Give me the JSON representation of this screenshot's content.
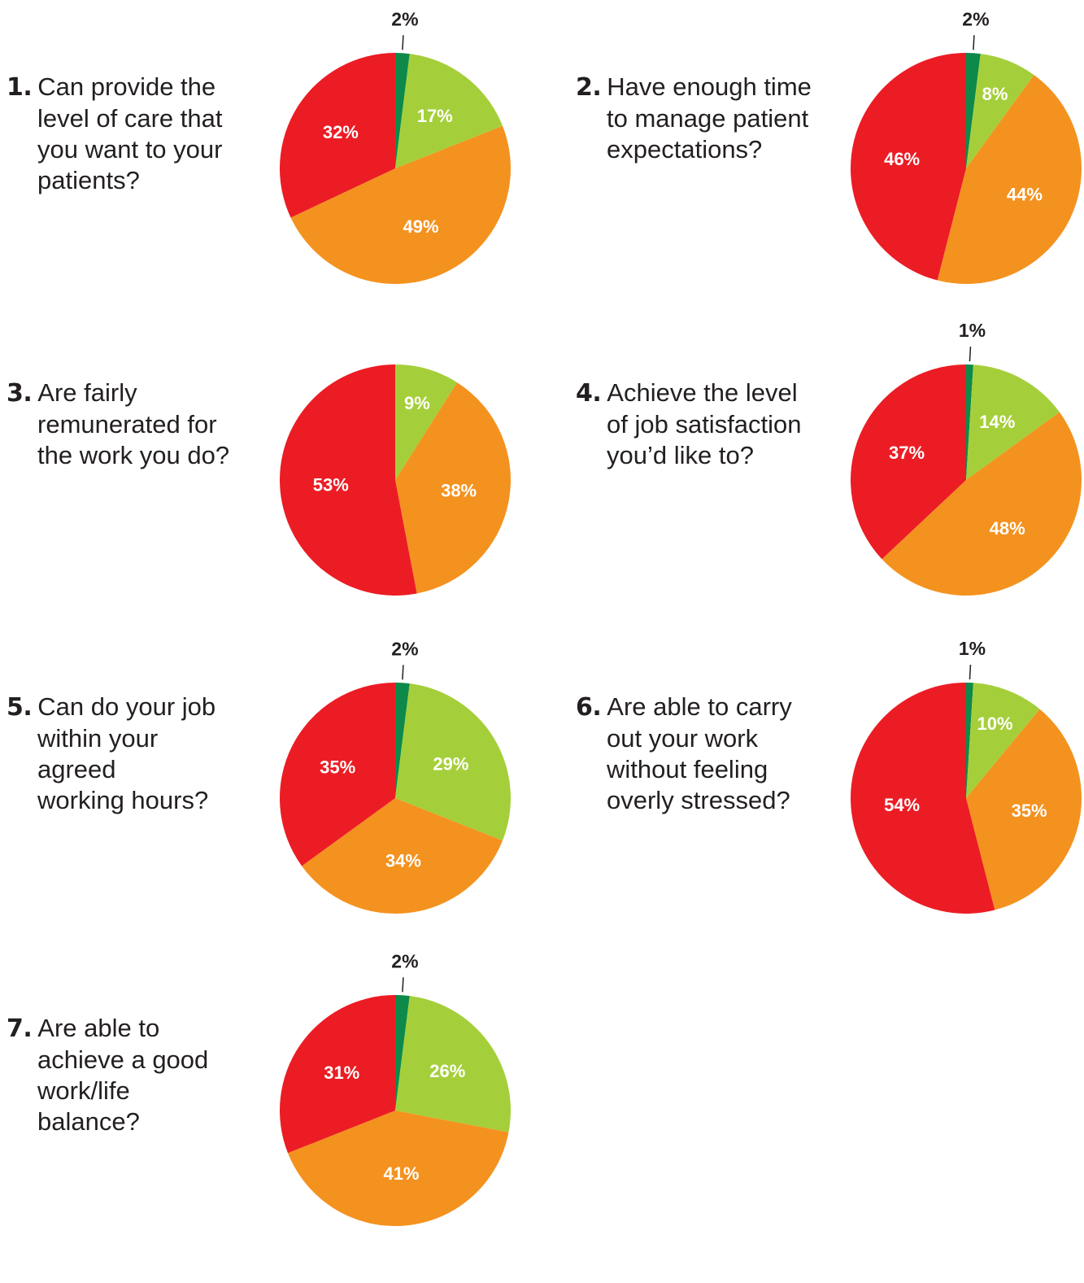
{
  "colors": {
    "very_much": "#0d8a4a",
    "mostly": "#a5cf3a",
    "sometimes": "#f4921f",
    "not_really": "#ec1c24"
  },
  "chart_data": [
    {
      "type": "pie",
      "number": "1.",
      "question": "Can provide the level of care that you want to your patients?",
      "question_lines": [
        "Can provide the",
        "level of care that",
        "you want to your",
        "patients?"
      ],
      "values": [
        2,
        17,
        49,
        32
      ],
      "labels": [
        "2%",
        "17%",
        "49%",
        "32%"
      ],
      "colors": [
        "#0d8a4a",
        "#a5cf3a",
        "#f4921f",
        "#ec1c24"
      ]
    },
    {
      "type": "pie",
      "number": "2.",
      "question": "Have enough time to manage patient expectations?",
      "question_lines": [
        "Have enough time",
        "to manage patient",
        "expectations?"
      ],
      "values": [
        2,
        8,
        44,
        46
      ],
      "labels": [
        "2%",
        "8%",
        "44%",
        "46%"
      ],
      "colors": [
        "#0d8a4a",
        "#a5cf3a",
        "#f4921f",
        "#ec1c24"
      ]
    },
    {
      "type": "pie",
      "number": "3.",
      "question": "Are fairly remunerated for the work you do?",
      "question_lines": [
        "Are fairly",
        "remunerated for",
        "the work you do?"
      ],
      "values": [
        9,
        38,
        53
      ],
      "labels": [
        "9%",
        "38%",
        "53%"
      ],
      "colors": [
        "#a5cf3a",
        "#f4921f",
        "#ec1c24"
      ]
    },
    {
      "type": "pie",
      "number": "4.",
      "question": "Achieve the level of job satisfaction you'd like to?",
      "question_lines": [
        "Achieve the level",
        "of job satisfaction",
        "you’d like to?"
      ],
      "values": [
        1,
        14,
        48,
        37
      ],
      "labels": [
        "1%",
        "14%",
        "48%",
        "37%"
      ],
      "colors": [
        "#0d8a4a",
        "#a5cf3a",
        "#f4921f",
        "#ec1c24"
      ]
    },
    {
      "type": "pie",
      "number": "5.",
      "question": "Can do your job within your agreed working hours?",
      "question_lines": [
        "Can do your job",
        "within your agreed",
        "working hours?"
      ],
      "values": [
        2,
        29,
        34,
        35
      ],
      "labels": [
        "2%",
        "29%",
        "34%",
        "35%"
      ],
      "colors": [
        "#0d8a4a",
        "#a5cf3a",
        "#f4921f",
        "#ec1c24"
      ]
    },
    {
      "type": "pie",
      "number": "6.",
      "question": "Are able to carry out your work without feeling overly stressed?",
      "question_lines": [
        "Are able to carry",
        "out your work",
        "without feeling",
        "overly stressed?"
      ],
      "values": [
        1,
        10,
        35,
        54
      ],
      "labels": [
        "1%",
        "10%",
        "35%",
        "54%"
      ],
      "colors": [
        "#0d8a4a",
        "#a5cf3a",
        "#f4921f",
        "#ec1c24"
      ]
    },
    {
      "type": "pie",
      "number": "7.",
      "question": "Are able to achieve a good work/life balance?",
      "question_lines": [
        "Are able to",
        "achieve a good",
        "work/life",
        "balance?"
      ],
      "values": [
        2,
        26,
        41,
        31
      ],
      "labels": [
        "2%",
        "26%",
        "41%",
        "31%"
      ],
      "colors": [
        "#0d8a4a",
        "#a5cf3a",
        "#f4921f",
        "#ec1c24"
      ]
    }
  ]
}
